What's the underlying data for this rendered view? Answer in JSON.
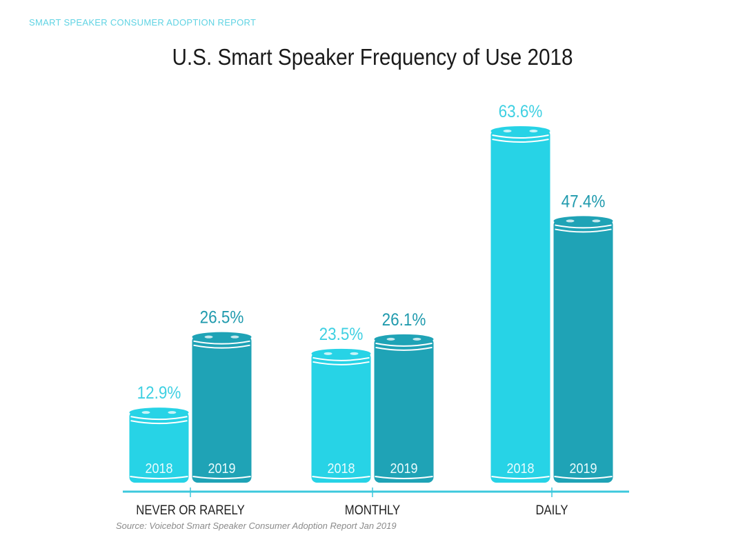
{
  "header": {
    "kicker": "SMART SPEAKER CONSUMER ADOPTION REPORT"
  },
  "source": "Source: Voicebot Smart Speaker Consumer Adoption Report Jan 2019",
  "colors": {
    "series_2018": "#27d3e6",
    "series_2019": "#1fa3b6",
    "axis": "#3cc8dc",
    "label_2018": "#3fd0e2",
    "label_2019": "#1f9aad"
  },
  "chart_data": {
    "type": "bar",
    "title": "U.S. Smart Speaker Frequency of Use 2018",
    "xlabel": "",
    "ylabel": "",
    "ylim": [
      0,
      70
    ],
    "grid": false,
    "legend": "none (series named inside bars)",
    "categories": [
      "NEVER OR RARELY",
      "MONTHLY",
      "DAILY"
    ],
    "series": [
      {
        "name": "2018",
        "values": [
          12.9,
          23.5,
          63.6
        ],
        "labels": [
          "12.9%",
          "23.5%",
          "63.6%"
        ]
      },
      {
        "name": "2019",
        "values": [
          26.5,
          26.1,
          47.4
        ],
        "labels": [
          "26.5%",
          "26.1%",
          "47.4%"
        ]
      }
    ]
  }
}
